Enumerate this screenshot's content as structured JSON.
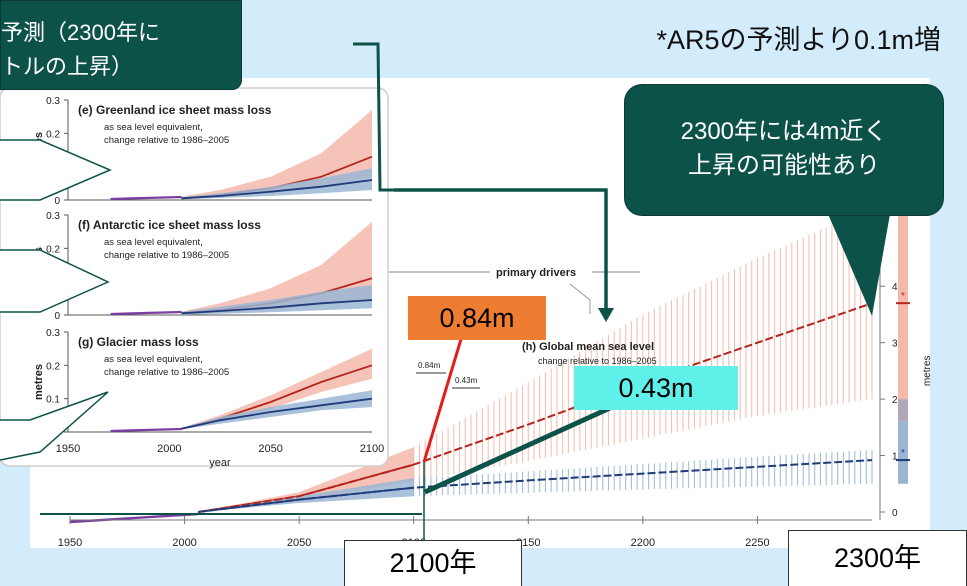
{
  "headline": "*AR5の予測より0.1m増",
  "top_callout": {
    "line1": "予測（2300年に",
    "line2": "トルの上昇）"
  },
  "right_callout": {
    "line1": "2300年には4m近く",
    "line2": "上昇の可能性あり"
  },
  "value_labels": {
    "high": "0.84m",
    "low": "0.43m"
  },
  "year_labels": {
    "y2100": "2100年",
    "y2300": "2300年"
  },
  "colors": {
    "background": "#d3ecfb",
    "callout": "#0d5249",
    "high_label": "#ee7d31",
    "low_label": "#5ff0ea",
    "red_band": "#f4b9ab",
    "blue_band": "#9ab6d4",
    "red_line": "#b3261e",
    "blue_line": "#1f3b7a"
  },
  "chart_data": [
    {
      "type": "area",
      "id": "e",
      "title": "(e)  Greenland ice sheet mass loss",
      "subtitle1": "as sea level equivalent,",
      "subtitle2": "change relative to 1986–2005",
      "ylabel": "metres",
      "ylim": [
        0,
        0.3
      ],
      "yticks": [
        "0",
        "0.1",
        "0.2",
        "0.3"
      ],
      "x": [
        2006,
        2025,
        2050,
        2075,
        2100
      ],
      "series": [
        {
          "values": [
            0.005,
            0.015,
            0.035,
            0.07,
            0.13
          ],
          "low": [
            0.003,
            0.01,
            0.02,
            0.04,
            0.07
          ],
          "high": [
            0.01,
            0.03,
            0.07,
            0.14,
            0.27
          ]
        },
        {
          "values": [
            0.005,
            0.012,
            0.025,
            0.04,
            0.06
          ],
          "low": [
            0.002,
            0.006,
            0.012,
            0.02,
            0.03
          ],
          "high": [
            0.008,
            0.02,
            0.04,
            0.065,
            0.095
          ]
        }
      ]
    },
    {
      "type": "area",
      "id": "f",
      "title": "(f)  Antarctic ice sheet mass loss",
      "subtitle1": "as sea level equivalent,",
      "subtitle2": "change relative to 1986–2005",
      "ylabel": "metres",
      "ylim": [
        0,
        0.3
      ],
      "yticks": [
        "0",
        "0.1",
        "0.2",
        "0.3"
      ],
      "x": [
        2006,
        2025,
        2050,
        2075,
        2100
      ],
      "series": [
        {
          "values": [
            0.005,
            0.015,
            0.035,
            0.065,
            0.11
          ],
          "low": [
            0.002,
            0.006,
            0.015,
            0.03,
            0.05
          ],
          "high": [
            0.01,
            0.035,
            0.08,
            0.15,
            0.28
          ]
        },
        {
          "values": [
            0.005,
            0.012,
            0.022,
            0.035,
            0.045
          ],
          "low": [
            0.0,
            0.004,
            0.008,
            0.014,
            0.02
          ],
          "high": [
            0.01,
            0.025,
            0.045,
            0.07,
            0.09
          ]
        }
      ]
    },
    {
      "type": "area",
      "id": "g",
      "title": "(g)  Glacier mass loss",
      "subtitle1": "as sea level equivalent,",
      "subtitle2": "change relative to 1986–2005",
      "ylabel": "metres",
      "ylim": [
        0,
        0.3
      ],
      "yticks": [
        "0",
        "0.1",
        "0.2",
        "0.3"
      ],
      "xticks": [
        "1950",
        "2000",
        "2050",
        "2100"
      ],
      "xlabel": "year",
      "x": [
        2006,
        2025,
        2050,
        2075,
        2100
      ],
      "series": [
        {
          "values": [
            0.01,
            0.04,
            0.09,
            0.15,
            0.2
          ],
          "low": [
            0.008,
            0.03,
            0.07,
            0.12,
            0.16
          ],
          "high": [
            0.012,
            0.05,
            0.11,
            0.18,
            0.25
          ]
        },
        {
          "values": [
            0.01,
            0.035,
            0.06,
            0.08,
            0.1
          ],
          "low": [
            0.008,
            0.025,
            0.045,
            0.065,
            0.075
          ],
          "high": [
            0.012,
            0.045,
            0.075,
            0.1,
            0.125
          ]
        }
      ]
    },
    {
      "type": "area",
      "id": "h",
      "title": "(h)  Global mean sea level",
      "subtitle1": "change relative to 1986–2005",
      "ylabel": "metres",
      "ylim": [
        0,
        4.5
      ],
      "yticks": [
        "0",
        "1",
        "2",
        "3",
        "4"
      ],
      "xticks": [
        "1950",
        "2000",
        "2050",
        "2100",
        "2150",
        "2200",
        "2250"
      ],
      "drivers_label": "primary drivers",
      "bracket_labels": [
        "0.84m",
        "0.43m"
      ],
      "x": [
        2006,
        2050,
        2100,
        2150,
        2200,
        2250,
        2300
      ],
      "series": [
        {
          "values": [
            0.0,
            0.28,
            0.84,
            1.55,
            2.3,
            3.0,
            3.7
          ],
          "low": [
            0.0,
            0.2,
            0.55,
            0.9,
            1.3,
            1.7,
            2.0
          ],
          "high": [
            0.0,
            0.35,
            1.15,
            2.3,
            3.5,
            4.5,
            5.4
          ]
        },
        {
          "values": [
            0.0,
            0.22,
            0.43,
            0.56,
            0.68,
            0.8,
            0.92
          ],
          "low": [
            0.0,
            0.16,
            0.28,
            0.34,
            0.4,
            0.45,
            0.5
          ],
          "high": [
            0.0,
            0.28,
            0.6,
            0.72,
            0.85,
            0.98,
            1.1
          ]
        }
      ],
      "range_bar_labels": [
        "*",
        "*"
      ]
    }
  ]
}
